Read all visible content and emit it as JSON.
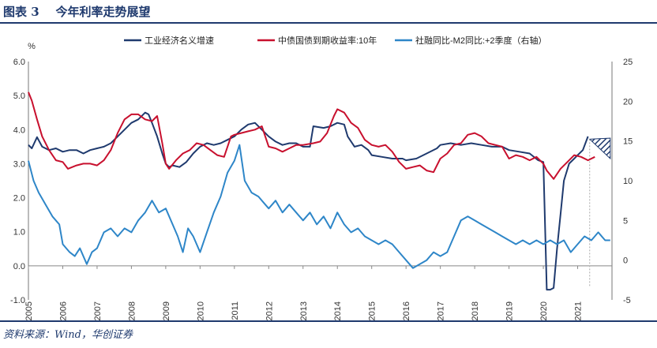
{
  "header": {
    "title": "图表 3    今年利率走势展望"
  },
  "footer": {
    "source": "资料来源：Wind，华创证券"
  },
  "chart_data": {
    "type": "line",
    "ylabel_left": "%",
    "left_axis": {
      "ylim": [
        -1.0,
        6.0
      ],
      "ticks": [
        "6.0",
        "5.0",
        "4.0",
        "3.0",
        "2.0",
        "1.0",
        "0.0",
        "-1.0"
      ]
    },
    "right_axis": {
      "ylim": [
        -5,
        25
      ],
      "ticks": [
        "25",
        "20",
        "15",
        "10",
        "5",
        "0",
        "-5"
      ]
    },
    "x_tick_labels": [
      "2005",
      "2006",
      "2007",
      "2008",
      "2009",
      "2010",
      "2011",
      "2012",
      "2013",
      "2014",
      "2015",
      "2016",
      "2017",
      "2018",
      "2019",
      "2020",
      "2021"
    ],
    "xlim": [
      2005.0,
      2022.0
    ],
    "colors": {
      "nominal": "#1f3a6e",
      "yield": "#c8102e",
      "credit": "#2e86c8"
    },
    "series": [
      {
        "name": "工业经济名义增速",
        "axis": "left",
        "points": [
          [
            2005.0,
            3.55
          ],
          [
            2005.1,
            3.45
          ],
          [
            2005.25,
            3.78
          ],
          [
            2005.4,
            3.5
          ],
          [
            2005.6,
            3.4
          ],
          [
            2005.8,
            3.45
          ],
          [
            2006.0,
            3.35
          ],
          [
            2006.2,
            3.4
          ],
          [
            2006.4,
            3.4
          ],
          [
            2006.6,
            3.3
          ],
          [
            2006.8,
            3.4
          ],
          [
            2007.0,
            3.45
          ],
          [
            2007.2,
            3.5
          ],
          [
            2007.4,
            3.6
          ],
          [
            2007.6,
            3.8
          ],
          [
            2007.8,
            4.0
          ],
          [
            2008.0,
            4.2
          ],
          [
            2008.2,
            4.3
          ],
          [
            2008.4,
            4.5
          ],
          [
            2008.5,
            4.45
          ],
          [
            2008.6,
            4.2
          ],
          [
            2008.75,
            3.8
          ],
          [
            2008.9,
            3.3
          ],
          [
            2009.0,
            3.0
          ],
          [
            2009.1,
            2.9
          ],
          [
            2009.2,
            2.95
          ],
          [
            2009.4,
            2.9
          ],
          [
            2009.6,
            3.05
          ],
          [
            2009.8,
            3.3
          ],
          [
            2010.0,
            3.5
          ],
          [
            2010.2,
            3.6
          ],
          [
            2010.4,
            3.55
          ],
          [
            2010.6,
            3.6
          ],
          [
            2010.8,
            3.7
          ],
          [
            2011.0,
            3.8
          ],
          [
            2011.2,
            4.0
          ],
          [
            2011.4,
            4.15
          ],
          [
            2011.6,
            4.2
          ],
          [
            2011.8,
            4.0
          ],
          [
            2012.0,
            3.8
          ],
          [
            2012.2,
            3.65
          ],
          [
            2012.4,
            3.55
          ],
          [
            2012.6,
            3.6
          ],
          [
            2012.8,
            3.6
          ],
          [
            2013.0,
            3.5
          ],
          [
            2013.2,
            3.5
          ],
          [
            2013.3,
            4.1
          ],
          [
            2013.6,
            4.05
          ],
          [
            2013.8,
            4.1
          ],
          [
            2014.0,
            4.2
          ],
          [
            2014.2,
            4.15
          ],
          [
            2014.3,
            3.8
          ],
          [
            2014.5,
            3.5
          ],
          [
            2014.7,
            3.55
          ],
          [
            2014.9,
            3.4
          ],
          [
            2015.0,
            3.25
          ],
          [
            2015.3,
            3.2
          ],
          [
            2015.6,
            3.15
          ],
          [
            2015.9,
            3.15
          ],
          [
            2016.0,
            3.1
          ],
          [
            2016.3,
            3.15
          ],
          [
            2016.6,
            3.3
          ],
          [
            2016.9,
            3.45
          ],
          [
            2017.0,
            3.55
          ],
          [
            2017.3,
            3.6
          ],
          [
            2017.6,
            3.55
          ],
          [
            2017.9,
            3.6
          ],
          [
            2018.2,
            3.55
          ],
          [
            2018.5,
            3.5
          ],
          [
            2018.8,
            3.5
          ],
          [
            2019.0,
            3.4
          ],
          [
            2019.3,
            3.35
          ],
          [
            2019.6,
            3.3
          ],
          [
            2019.85,
            3.1
          ],
          [
            2020.0,
            3.05
          ],
          [
            2020.1,
            -0.7
          ],
          [
            2020.2,
            -0.7
          ],
          [
            2020.3,
            -0.65
          ],
          [
            2020.4,
            0.5
          ],
          [
            2020.5,
            1.5
          ],
          [
            2020.6,
            2.5
          ],
          [
            2020.75,
            3.0
          ],
          [
            2020.9,
            3.15
          ],
          [
            2021.0,
            3.25
          ],
          [
            2021.15,
            3.4
          ],
          [
            2021.3,
            3.8
          ]
        ]
      },
      {
        "name": "中债国债到期收益率:10年",
        "axis": "left",
        "points": [
          [
            2005.0,
            5.1
          ],
          [
            2005.1,
            4.85
          ],
          [
            2005.25,
            4.3
          ],
          [
            2005.4,
            3.8
          ],
          [
            2005.6,
            3.4
          ],
          [
            2005.8,
            3.1
          ],
          [
            2006.0,
            3.05
          ],
          [
            2006.15,
            2.85
          ],
          [
            2006.4,
            2.95
          ],
          [
            2006.6,
            3.0
          ],
          [
            2006.8,
            3.0
          ],
          [
            2007.0,
            2.95
          ],
          [
            2007.2,
            3.1
          ],
          [
            2007.4,
            3.4
          ],
          [
            2007.6,
            3.9
          ],
          [
            2007.8,
            4.3
          ],
          [
            2008.0,
            4.45
          ],
          [
            2008.2,
            4.45
          ],
          [
            2008.4,
            4.3
          ],
          [
            2008.6,
            4.25
          ],
          [
            2008.75,
            4.4
          ],
          [
            2008.9,
            3.6
          ],
          [
            2009.0,
            3.0
          ],
          [
            2009.1,
            2.85
          ],
          [
            2009.3,
            3.1
          ],
          [
            2009.5,
            3.3
          ],
          [
            2009.7,
            3.4
          ],
          [
            2009.9,
            3.6
          ],
          [
            2010.1,
            3.55
          ],
          [
            2010.3,
            3.4
          ],
          [
            2010.5,
            3.25
          ],
          [
            2010.7,
            3.2
          ],
          [
            2010.9,
            3.8
          ],
          [
            2011.0,
            3.85
          ],
          [
            2011.2,
            3.9
          ],
          [
            2011.4,
            3.95
          ],
          [
            2011.6,
            4.0
          ],
          [
            2011.8,
            4.1
          ],
          [
            2012.0,
            3.5
          ],
          [
            2012.2,
            3.45
          ],
          [
            2012.4,
            3.35
          ],
          [
            2012.6,
            3.45
          ],
          [
            2012.8,
            3.55
          ],
          [
            2013.0,
            3.55
          ],
          [
            2013.3,
            3.6
          ],
          [
            2013.5,
            3.65
          ],
          [
            2013.7,
            3.9
          ],
          [
            2013.9,
            4.4
          ],
          [
            2014.0,
            4.6
          ],
          [
            2014.2,
            4.5
          ],
          [
            2014.4,
            4.2
          ],
          [
            2014.6,
            4.05
          ],
          [
            2014.8,
            3.7
          ],
          [
            2015.0,
            3.55
          ],
          [
            2015.2,
            3.5
          ],
          [
            2015.4,
            3.55
          ],
          [
            2015.6,
            3.35
          ],
          [
            2015.8,
            3.05
          ],
          [
            2016.0,
            2.85
          ],
          [
            2016.2,
            2.9
          ],
          [
            2016.4,
            2.95
          ],
          [
            2016.6,
            2.8
          ],
          [
            2016.8,
            2.75
          ],
          [
            2017.0,
            3.15
          ],
          [
            2017.2,
            3.3
          ],
          [
            2017.4,
            3.55
          ],
          [
            2017.6,
            3.6
          ],
          [
            2017.8,
            3.85
          ],
          [
            2018.0,
            3.9
          ],
          [
            2018.2,
            3.8
          ],
          [
            2018.4,
            3.6
          ],
          [
            2018.6,
            3.55
          ],
          [
            2018.8,
            3.5
          ],
          [
            2019.0,
            3.15
          ],
          [
            2019.2,
            3.25
          ],
          [
            2019.4,
            3.2
          ],
          [
            2019.6,
            3.1
          ],
          [
            2019.8,
            3.2
          ],
          [
            2020.0,
            3.0
          ],
          [
            2020.1,
            2.8
          ],
          [
            2020.3,
            2.55
          ],
          [
            2020.5,
            2.85
          ],
          [
            2020.7,
            3.05
          ],
          [
            2020.9,
            3.25
          ],
          [
            2021.1,
            3.2
          ],
          [
            2021.3,
            3.1
          ],
          [
            2021.5,
            3.2
          ]
        ]
      },
      {
        "name": "社融同比-M2同比:+2季度（右轴）",
        "axis": "right",
        "points": [
          [
            2005.0,
            12.5
          ],
          [
            2005.15,
            10.0
          ],
          [
            2005.3,
            8.5
          ],
          [
            2005.5,
            7.0
          ],
          [
            2005.7,
            5.5
          ],
          [
            2005.9,
            4.5
          ],
          [
            2006.0,
            2.0
          ],
          [
            2006.2,
            1.0
          ],
          [
            2006.35,
            0.5
          ],
          [
            2006.5,
            1.5
          ],
          [
            2006.7,
            -0.5
          ],
          [
            2006.85,
            1.0
          ],
          [
            2007.0,
            1.5
          ],
          [
            2007.2,
            3.5
          ],
          [
            2007.4,
            4.0
          ],
          [
            2007.6,
            3.0
          ],
          [
            2007.8,
            4.0
          ],
          [
            2008.0,
            3.5
          ],
          [
            2008.2,
            5.0
          ],
          [
            2008.4,
            6.0
          ],
          [
            2008.6,
            7.5
          ],
          [
            2008.8,
            6.0
          ],
          [
            2009.0,
            6.5
          ],
          [
            2009.2,
            4.5
          ],
          [
            2009.35,
            3.0
          ],
          [
            2009.5,
            1.0
          ],
          [
            2009.65,
            4.0
          ],
          [
            2009.8,
            3.0
          ],
          [
            2010.0,
            1.0
          ],
          [
            2010.2,
            3.5
          ],
          [
            2010.4,
            6.0
          ],
          [
            2010.6,
            8.0
          ],
          [
            2010.8,
            11.0
          ],
          [
            2011.0,
            12.5
          ],
          [
            2011.15,
            14.5
          ],
          [
            2011.3,
            10.0
          ],
          [
            2011.5,
            8.5
          ],
          [
            2011.7,
            8.0
          ],
          [
            2011.9,
            7.0
          ],
          [
            2012.0,
            6.5
          ],
          [
            2012.2,
            7.5
          ],
          [
            2012.4,
            6.0
          ],
          [
            2012.6,
            7.0
          ],
          [
            2012.8,
            6.0
          ],
          [
            2013.0,
            5.0
          ],
          [
            2013.2,
            6.0
          ],
          [
            2013.4,
            4.5
          ],
          [
            2013.6,
            5.5
          ],
          [
            2013.8,
            4.0
          ],
          [
            2014.0,
            6.0
          ],
          [
            2014.2,
            4.5
          ],
          [
            2014.4,
            3.5
          ],
          [
            2014.6,
            4.0
          ],
          [
            2014.8,
            3.0
          ],
          [
            2015.0,
            2.5
          ],
          [
            2015.2,
            2.0
          ],
          [
            2015.4,
            2.5
          ],
          [
            2015.6,
            2.0
          ],
          [
            2015.8,
            1.0
          ],
          [
            2016.0,
            0.0
          ],
          [
            2016.2,
            -1.0
          ],
          [
            2016.4,
            -0.5
          ],
          [
            2016.6,
            0.0
          ],
          [
            2016.8,
            1.0
          ],
          [
            2017.0,
            0.5
          ],
          [
            2017.2,
            1.0
          ],
          [
            2017.4,
            3.0
          ],
          [
            2017.6,
            5.0
          ],
          [
            2017.8,
            5.5
          ],
          [
            2018.0,
            5.0
          ],
          [
            2018.2,
            4.5
          ],
          [
            2018.4,
            4.0
          ],
          [
            2018.6,
            3.5
          ],
          [
            2018.8,
            3.0
          ],
          [
            2019.0,
            2.5
          ],
          [
            2019.2,
            2.0
          ],
          [
            2019.4,
            2.5
          ],
          [
            2019.6,
            2.0
          ],
          [
            2019.8,
            2.5
          ],
          [
            2020.0,
            2.0
          ],
          [
            2020.2,
            2.5
          ],
          [
            2020.4,
            2.0
          ],
          [
            2020.6,
            2.5
          ],
          [
            2020.8,
            1.0
          ],
          [
            2021.0,
            2.0
          ],
          [
            2021.2,
            3.0
          ],
          [
            2021.4,
            2.5
          ],
          [
            2021.6,
            3.5
          ],
          [
            2021.8,
            2.5
          ],
          [
            2021.95,
            2.5
          ]
        ]
      }
    ],
    "forecast_band": {
      "axis": "left",
      "points": [
        [
          2021.35,
          3.72,
          3.72
        ],
        [
          2021.95,
          3.75,
          3.15
        ]
      ],
      "color": "#1f3a6e"
    }
  }
}
